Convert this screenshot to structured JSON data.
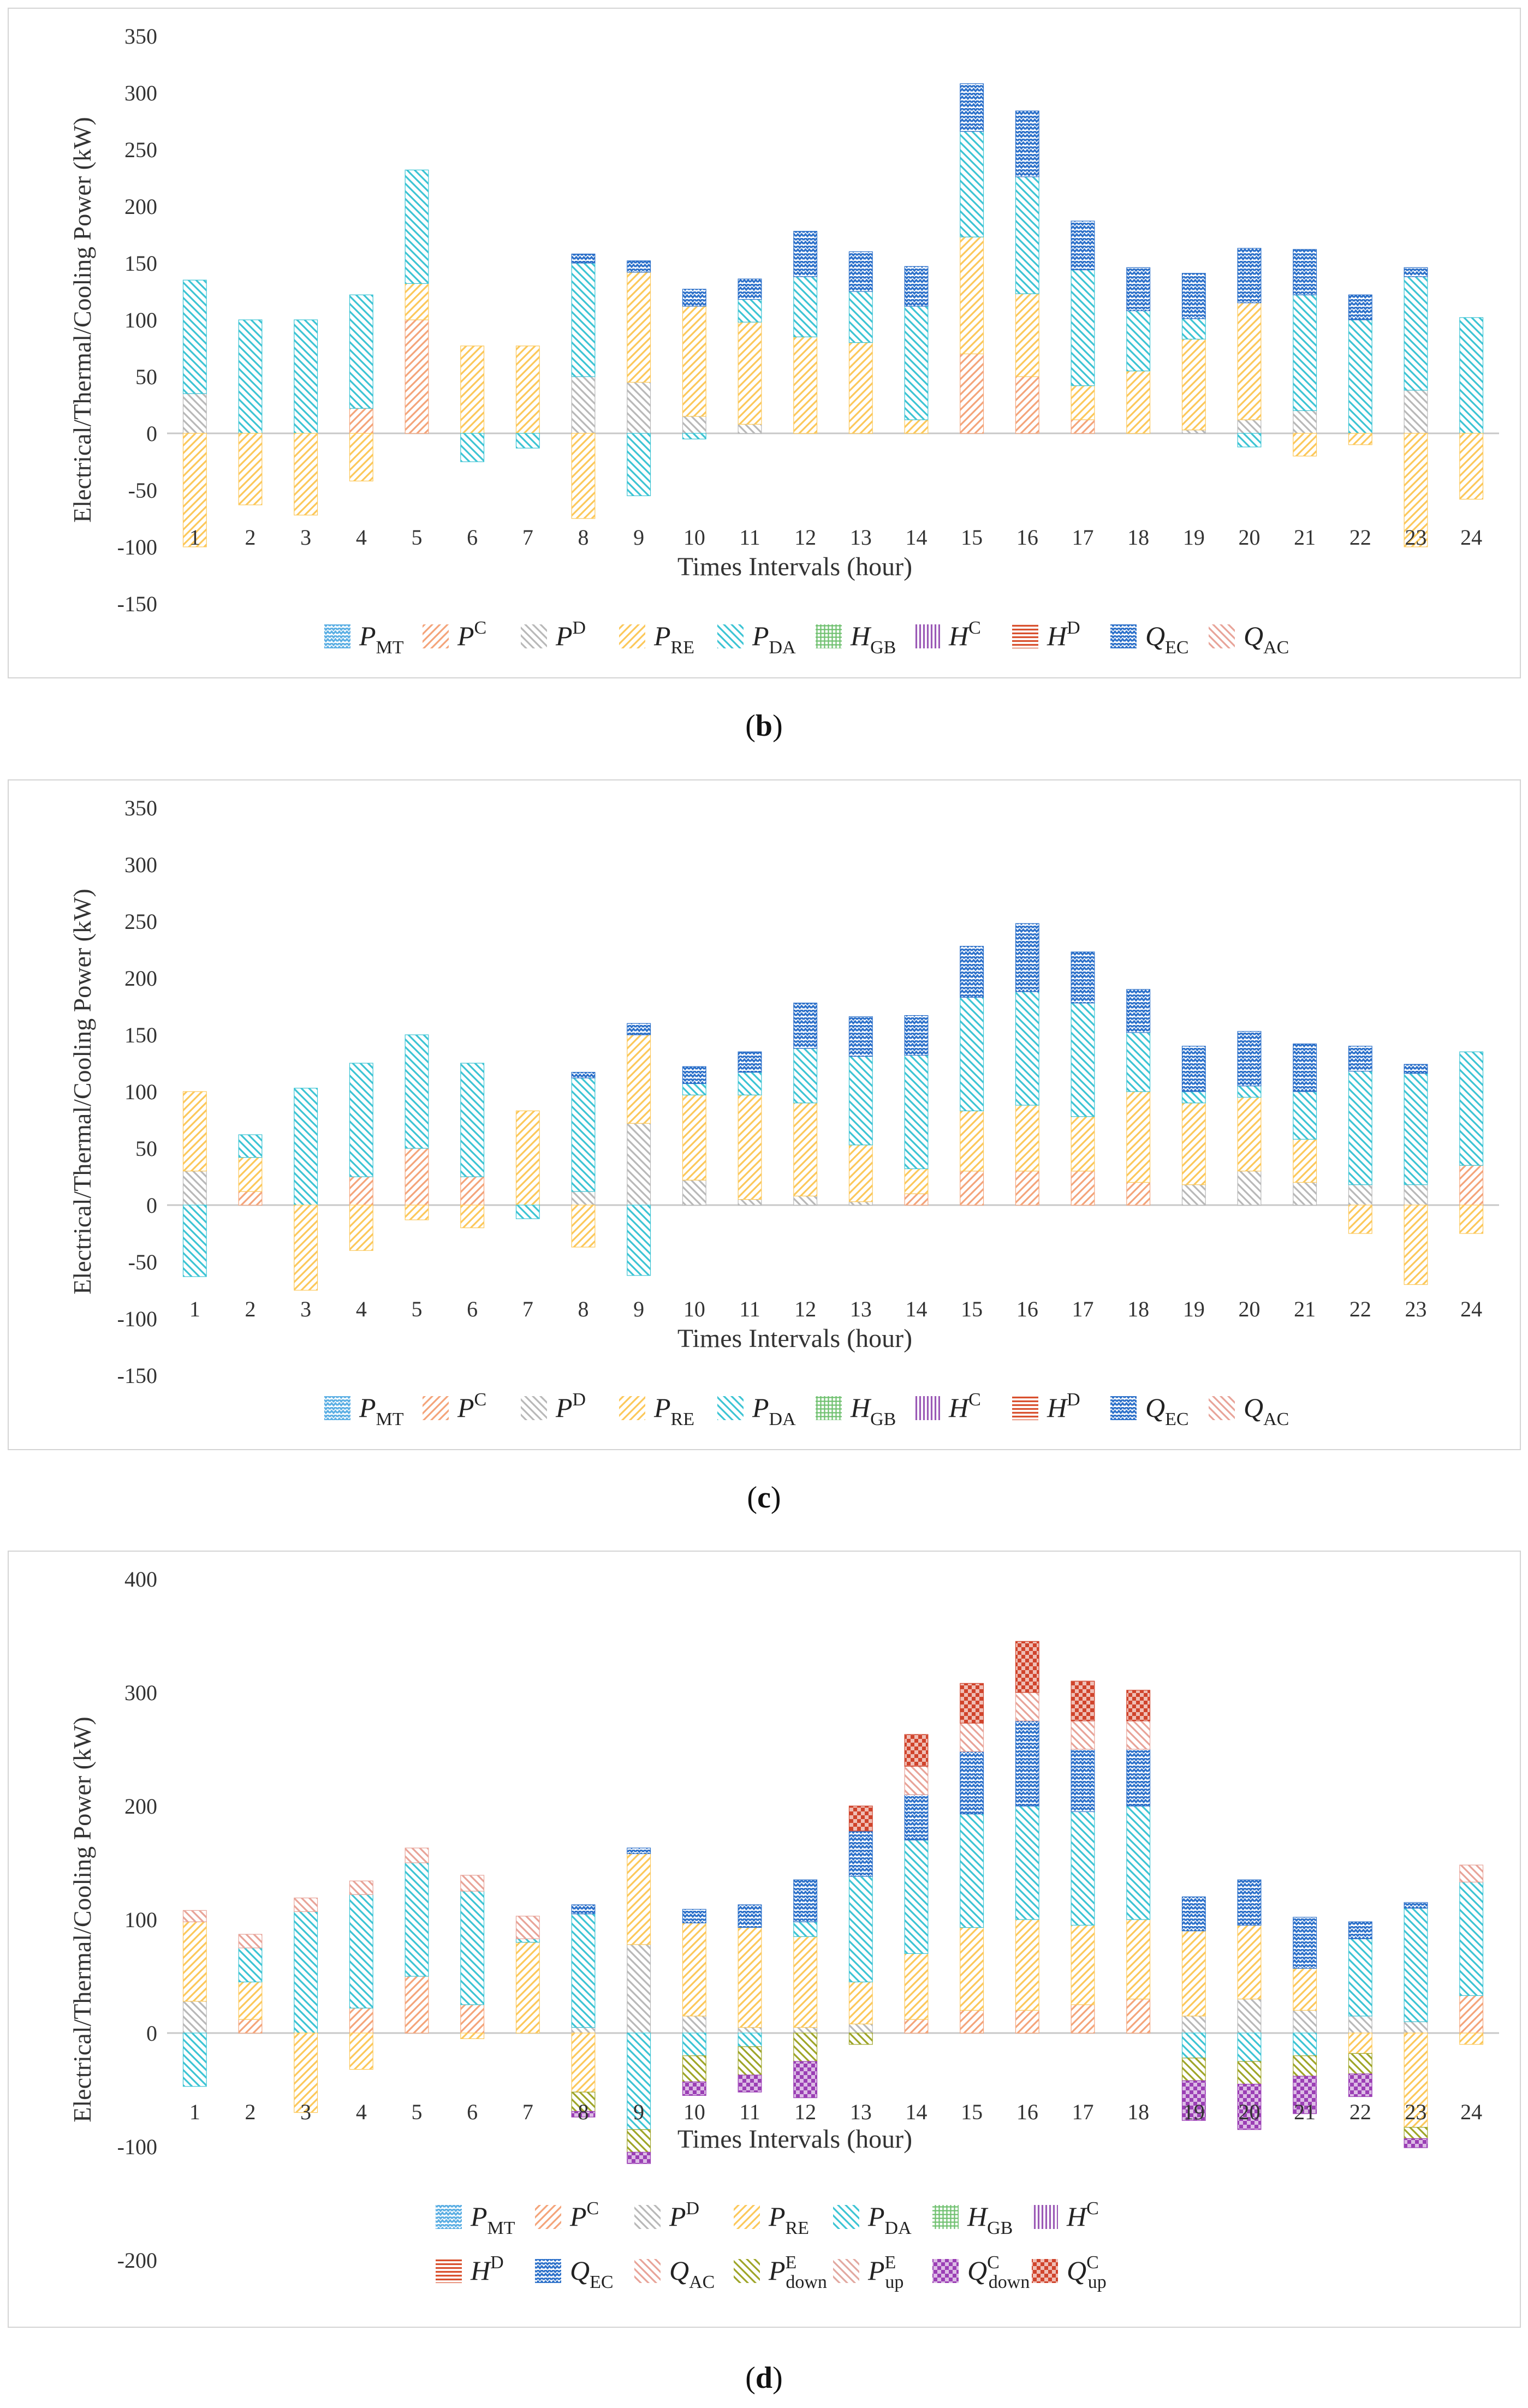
{
  "colors": {
    "P_MT": "#5aaee3",
    "P_C": "#f4a47a",
    "P_D": "#b8b8b8",
    "P_RE": "#fcc85a",
    "P_DA": "#3cc4d4",
    "H_GB": "#6fc06f",
    "H_C": "#9b59b6",
    "H_D": "#d9502e",
    "Q_EC": "#2a6fc9",
    "Q_AC": "#e8a398",
    "P_down": "#9ea528",
    "P_up": "#e2a8a0",
    "Q_down": "#9b3fb5",
    "Q_up": "#d0442c"
  },
  "legend_symbols": {
    "P_MT": [
      "P",
      "MT",
      ""
    ],
    "P_C": [
      "P",
      "",
      "C"
    ],
    "P_D": [
      "P",
      "",
      "D"
    ],
    "P_RE": [
      "P",
      "RE",
      ""
    ],
    "P_DA": [
      "P",
      "DA",
      ""
    ],
    "H_GB": [
      "H",
      "GB",
      ""
    ],
    "H_C": [
      "H",
      "",
      "C"
    ],
    "H_D": [
      "H",
      "",
      "D"
    ],
    "Q_EC": [
      "Q",
      "EC",
      ""
    ],
    "Q_AC": [
      "Q",
      "AC",
      ""
    ],
    "P_down": [
      "P",
      "down",
      "E"
    ],
    "P_up": [
      "P",
      "up",
      "E"
    ],
    "Q_down": [
      "Q",
      "down",
      "C"
    ],
    "Q_up": [
      "Q",
      "up",
      "C"
    ]
  },
  "captions": {
    "b": "b",
    "c": "c",
    "d": "d"
  },
  "chart_data": [
    {
      "id": "b",
      "type": "bar",
      "stacked": true,
      "title": "",
      "xlabel": "Times Intervals (hour)",
      "ylabel": "Electrical/Thermal/Cooling  Power (kW)",
      "ylim": [
        -150,
        350
      ],
      "yticks": [
        -150,
        -100,
        -50,
        0,
        50,
        100,
        150,
        200,
        250,
        300,
        350
      ],
      "categories": [
        "1",
        "2",
        "3",
        "4",
        "5",
        "6",
        "7",
        "8",
        "9",
        "10",
        "11",
        "12",
        "13",
        "14",
        "15",
        "16",
        "17",
        "18",
        "19",
        "20",
        "21",
        "22",
        "23",
        "24"
      ],
      "legend": [
        "P_MT",
        "P_C",
        "P_D",
        "P_RE",
        "P_DA",
        "H_GB",
        "H_C",
        "H_D",
        "Q_EC",
        "Q_AC"
      ],
      "series": [
        {
          "name": "P_C",
          "values": [
            0,
            0,
            0,
            22,
            100,
            0,
            0,
            0,
            0,
            0,
            0,
            0,
            0,
            0,
            70,
            50,
            12,
            0,
            0,
            0,
            0,
            0,
            0,
            0
          ]
        },
        {
          "name": "P_D",
          "values": [
            35,
            0,
            0,
            0,
            0,
            0,
            0,
            50,
            45,
            15,
            8,
            0,
            0,
            0,
            0,
            0,
            0,
            0,
            3,
            12,
            20,
            0,
            38,
            0
          ]
        },
        {
          "name": "P_RE",
          "values": [
            0,
            0,
            0,
            0,
            32,
            77,
            77,
            0,
            97,
            97,
            90,
            85,
            80,
            12,
            103,
            73,
            30,
            55,
            80,
            103,
            0,
            0,
            0,
            0
          ]
        },
        {
          "name": "P_DA",
          "values": [
            100,
            100,
            100,
            100,
            100,
            0,
            0,
            100,
            0,
            0,
            20,
            53,
            45,
            100,
            93,
            103,
            102,
            53,
            18,
            0,
            102,
            100,
            100,
            102
          ]
        },
        {
          "name": "Q_EC",
          "values": [
            0,
            0,
            0,
            0,
            0,
            0,
            0,
            8,
            10,
            15,
            18,
            40,
            35,
            35,
            42,
            58,
            43,
            38,
            40,
            48,
            40,
            22,
            8,
            0
          ]
        },
        {
          "name": "P_RE_neg",
          "legend_key": "P_RE",
          "values": [
            -100,
            -63,
            -72,
            -42,
            0,
            0,
            0,
            -75,
            0,
            0,
            0,
            0,
            0,
            0,
            0,
            0,
            0,
            0,
            0,
            0,
            -20,
            -10,
            -100,
            -58
          ]
        },
        {
          "name": "P_DA_neg",
          "legend_key": "P_DA",
          "values": [
            0,
            0,
            0,
            0,
            0,
            -25,
            -13,
            0,
            -55,
            -5,
            0,
            0,
            0,
            0,
            0,
            0,
            0,
            0,
            0,
            -12,
            0,
            0,
            0,
            0
          ]
        }
      ]
    },
    {
      "id": "c",
      "type": "bar",
      "stacked": true,
      "title": "",
      "xlabel": "Times Intervals (hour)",
      "ylabel": "Electrical/Thermal/Cooling  Power (kW)",
      "ylim": [
        -150,
        350
      ],
      "yticks": [
        -150,
        -100,
        -50,
        0,
        50,
        100,
        150,
        200,
        250,
        300,
        350
      ],
      "categories": [
        "1",
        "2",
        "3",
        "4",
        "5",
        "6",
        "7",
        "8",
        "9",
        "10",
        "11",
        "12",
        "13",
        "14",
        "15",
        "16",
        "17",
        "18",
        "19",
        "20",
        "21",
        "22",
        "23",
        "24"
      ],
      "legend": [
        "P_MT",
        "P_C",
        "P_D",
        "P_RE",
        "P_DA",
        "H_GB",
        "H_C",
        "H_D",
        "Q_EC",
        "Q_AC"
      ],
      "series": [
        {
          "name": "P_C",
          "values": [
            0,
            12,
            0,
            25,
            50,
            25,
            0,
            0,
            0,
            0,
            0,
            0,
            0,
            10,
            30,
            30,
            30,
            20,
            0,
            0,
            0,
            0,
            0,
            35
          ]
        },
        {
          "name": "P_D",
          "values": [
            30,
            0,
            0,
            0,
            0,
            0,
            0,
            12,
            72,
            22,
            5,
            8,
            3,
            0,
            0,
            0,
            0,
            0,
            18,
            30,
            20,
            18,
            18,
            0
          ]
        },
        {
          "name": "P_RE",
          "values": [
            70,
            30,
            0,
            0,
            0,
            0,
            83,
            0,
            78,
            75,
            92,
            82,
            50,
            22,
            53,
            58,
            48,
            80,
            72,
            65,
            38,
            0,
            0,
            0
          ]
        },
        {
          "name": "P_DA",
          "values": [
            0,
            20,
            103,
            100,
            100,
            100,
            0,
            100,
            0,
            10,
            20,
            48,
            78,
            100,
            100,
            100,
            100,
            52,
            10,
            10,
            42,
            100,
            98,
            100
          ]
        },
        {
          "name": "Q_EC",
          "values": [
            0,
            0,
            0,
            0,
            0,
            0,
            0,
            5,
            10,
            15,
            18,
            40,
            35,
            35,
            45,
            60,
            45,
            38,
            40,
            48,
            42,
            22,
            8,
            0
          ]
        },
        {
          "name": "P_RE_neg",
          "legend_key": "P_RE",
          "values": [
            0,
            0,
            -75,
            -40,
            -13,
            -20,
            0,
            -37,
            0,
            0,
            0,
            0,
            0,
            0,
            0,
            0,
            0,
            0,
            0,
            0,
            0,
            -25,
            -70,
            -25
          ]
        },
        {
          "name": "P_DA_neg",
          "legend_key": "P_DA",
          "values": [
            -63,
            0,
            0,
            0,
            0,
            0,
            -12,
            0,
            -62,
            0,
            0,
            0,
            0,
            0,
            0,
            0,
            0,
            0,
            0,
            0,
            0,
            0,
            0,
            0
          ]
        }
      ]
    },
    {
      "id": "d",
      "type": "bar",
      "stacked": true,
      "title": "",
      "xlabel": "Times Intervals (hour)",
      "ylabel": "Electrical/Thermal/Cooling  Power (kW)",
      "ylim": [
        -200,
        400
      ],
      "yticks": [
        -200,
        -100,
        0,
        100,
        200,
        300,
        400
      ],
      "categories": [
        "1",
        "2",
        "3",
        "4",
        "5",
        "6",
        "7",
        "8",
        "9",
        "10",
        "11",
        "12",
        "13",
        "14",
        "15",
        "16",
        "17",
        "18",
        "19",
        "20",
        "21",
        "22",
        "23",
        "24"
      ],
      "legend": [
        "P_MT",
        "P_C",
        "P_D",
        "P_RE",
        "P_DA",
        "H_GB",
        "H_C",
        "H_D",
        "Q_EC",
        "Q_AC",
        "P_down",
        "P_up",
        "Q_down",
        "Q_up"
      ],
      "series": [
        {
          "name": "P_C",
          "values": [
            0,
            12,
            0,
            22,
            50,
            25,
            0,
            0,
            0,
            0,
            0,
            0,
            0,
            12,
            20,
            20,
            25,
            30,
            0,
            0,
            0,
            0,
            0,
            33
          ]
        },
        {
          "name": "P_D",
          "values": [
            28,
            0,
            0,
            0,
            0,
            0,
            0,
            5,
            78,
            15,
            5,
            5,
            8,
            0,
            0,
            0,
            0,
            0,
            15,
            30,
            20,
            15,
            10,
            0
          ]
        },
        {
          "name": "P_RE",
          "values": [
            70,
            33,
            0,
            0,
            0,
            0,
            80,
            0,
            80,
            82,
            88,
            80,
            37,
            58,
            73,
            80,
            70,
            70,
            75,
            65,
            37,
            0,
            0,
            0
          ]
        },
        {
          "name": "P_DA",
          "values": [
            0,
            30,
            107,
            100,
            100,
            100,
            3,
            100,
            0,
            0,
            0,
            13,
            93,
            100,
            100,
            100,
            100,
            100,
            0,
            0,
            0,
            68,
            100,
            100
          ]
        },
        {
          "name": "Q_EC",
          "values": [
            0,
            0,
            0,
            0,
            0,
            0,
            0,
            8,
            5,
            12,
            20,
            37,
            40,
            40,
            55,
            75,
            55,
            50,
            30,
            40,
            45,
            15,
            5,
            0
          ]
        },
        {
          "name": "Q_AC",
          "values": [
            10,
            12,
            12,
            12,
            13,
            14,
            20,
            0,
            0,
            0,
            0,
            0,
            0,
            25,
            25,
            25,
            25,
            25,
            0,
            0,
            0,
            0,
            0,
            15
          ]
        },
        {
          "name": "Q_up",
          "values": [
            0,
            0,
            0,
            0,
            0,
            0,
            0,
            0,
            0,
            0,
            0,
            0,
            22,
            28,
            35,
            45,
            35,
            27,
            0,
            0,
            0,
            0,
            0,
            0
          ]
        },
        {
          "name": "P_RE_neg",
          "legend_key": "P_RE",
          "values": [
            0,
            0,
            -70,
            -32,
            0,
            -5,
            0,
            -52,
            0,
            0,
            0,
            0,
            0,
            0,
            0,
            0,
            0,
            0,
            0,
            0,
            0,
            -18,
            -83,
            -10
          ]
        },
        {
          "name": "P_DA_neg",
          "legend_key": "P_DA",
          "values": [
            -47,
            0,
            0,
            0,
            0,
            0,
            0,
            0,
            -85,
            -20,
            -12,
            0,
            0,
            0,
            0,
            0,
            0,
            0,
            -22,
            -25,
            -20,
            0,
            0,
            0
          ]
        },
        {
          "name": "P_down",
          "values": [
            0,
            0,
            0,
            0,
            0,
            0,
            0,
            -17,
            -20,
            -23,
            -25,
            -25,
            -10,
            0,
            0,
            0,
            0,
            0,
            -20,
            -20,
            -18,
            -18,
            -10,
            0
          ]
        },
        {
          "name": "Q_down",
          "values": [
            0,
            0,
            0,
            0,
            0,
            0,
            0,
            -5,
            -10,
            -12,
            -15,
            -32,
            0,
            0,
            0,
            0,
            0,
            0,
            -35,
            -40,
            -33,
            -20,
            -8,
            0
          ]
        }
      ]
    }
  ]
}
